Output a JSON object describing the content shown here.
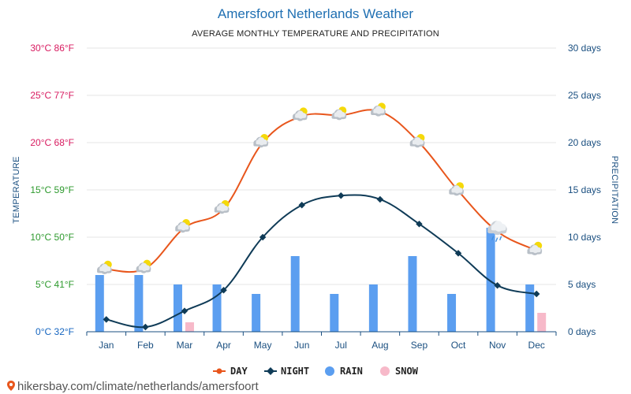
{
  "title": "Amersfoort Netherlands Weather",
  "subtitle": "AVERAGE MONTHLY TEMPERATURE AND PRECIPITATION",
  "footer": "hikersbay.com/climate/netherlands/amersfoort",
  "colors": {
    "day": "#e8561c",
    "night": "#0f3b57",
    "rain": "#5b9ef0",
    "snow": "#f7b9c9",
    "grid": "#e6e6e6",
    "axis_blue": "#1a4f80"
  },
  "chart_data": {
    "type": "line",
    "categories": [
      "Jan",
      "Feb",
      "Mar",
      "Apr",
      "May",
      "Jun",
      "Jul",
      "Aug",
      "Sep",
      "Oct",
      "Nov",
      "Dec"
    ],
    "y_left": {
      "label": "TEMPERATURE",
      "range": [
        0,
        30
      ],
      "ticks": [
        {
          "value": 0,
          "label": "0°C 32°F",
          "color": "#1565c0"
        },
        {
          "value": 5,
          "label": "5°C 41°F",
          "color": "#2e9a2e"
        },
        {
          "value": 10,
          "label": "10°C 50°F",
          "color": "#2e9a2e"
        },
        {
          "value": 15,
          "label": "15°C 59°F",
          "color": "#2e9a2e"
        },
        {
          "value": 20,
          "label": "20°C 68°F",
          "color": "#d81b60"
        },
        {
          "value": 25,
          "label": "25°C 77°F",
          "color": "#d81b60"
        },
        {
          "value": 30,
          "label": "30°C 86°F",
          "color": "#d81b60"
        }
      ]
    },
    "y_right": {
      "label": "PRECIPITATION",
      "range": [
        0,
        30
      ],
      "ticks": [
        {
          "value": 0,
          "label": "0 days"
        },
        {
          "value": 5,
          "label": "5 days"
        },
        {
          "value": 10,
          "label": "10 days"
        },
        {
          "value": 15,
          "label": "15 days"
        },
        {
          "value": 20,
          "label": "20 days"
        },
        {
          "value": 25,
          "label": "25 days"
        },
        {
          "value": 30,
          "label": "30 days"
        }
      ]
    },
    "series": [
      {
        "name": "DAY",
        "type": "line",
        "axis": "left",
        "values": [
          6.6,
          6.7,
          11.0,
          13.0,
          20.0,
          22.8,
          22.9,
          23.3,
          20.0,
          14.9,
          10.6,
          8.6
        ]
      },
      {
        "name": "NIGHT",
        "type": "line",
        "axis": "left",
        "values": [
          1.3,
          0.5,
          2.2,
          4.4,
          10.0,
          13.4,
          14.4,
          14.0,
          11.4,
          8.3,
          4.9,
          4.0
        ]
      },
      {
        "name": "RAIN",
        "type": "bar",
        "axis": "right",
        "values": [
          6,
          6,
          5,
          5,
          4,
          8,
          4,
          5,
          8,
          4,
          11,
          5
        ]
      },
      {
        "name": "SNOW",
        "type": "bar",
        "axis": "right",
        "values": [
          0,
          0,
          1,
          0,
          0,
          0,
          0,
          0,
          0,
          0,
          0,
          2
        ]
      }
    ],
    "weather_icons": [
      "partly-cloudy-icon",
      "partly-cloudy-icon",
      "partly-cloudy-icon",
      "partly-cloudy-icon",
      "partly-cloudy-icon",
      "partly-cloudy-icon",
      "partly-cloudy-icon",
      "partly-cloudy-icon",
      "partly-cloudy-icon",
      "partly-cloudy-icon",
      "cloud-rain-icon",
      "partly-cloudy-icon"
    ],
    "grid": true,
    "legend_position": "bottom-center"
  }
}
